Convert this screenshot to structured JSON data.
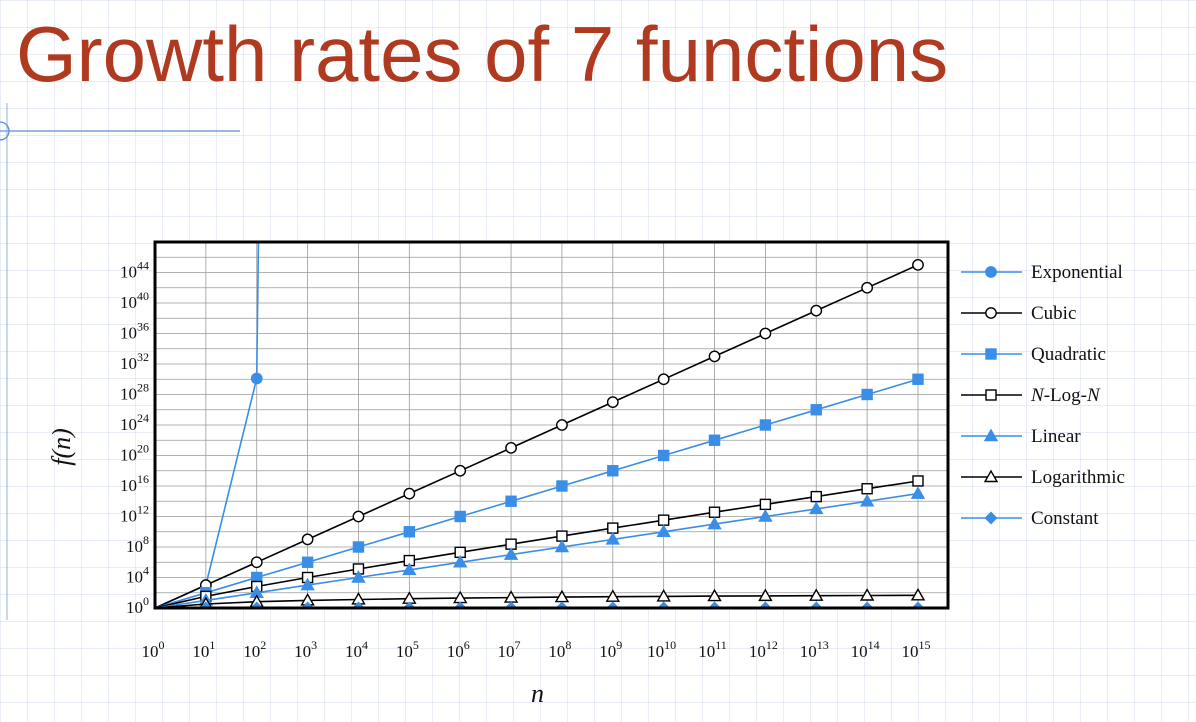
{
  "slide": {
    "title": "Growth rates of 7 functions"
  },
  "chart_data": {
    "type": "line",
    "xlabel": "n",
    "ylabel": "f(n)",
    "x_scale": "log10",
    "y_scale": "log10",
    "x_exponents": [
      0,
      1,
      2,
      3,
      4,
      5,
      6,
      7,
      8,
      9,
      10,
      11,
      12,
      13,
      14,
      15
    ],
    "y_tick_exponents": [
      0,
      4,
      8,
      12,
      16,
      20,
      24,
      28,
      32,
      36,
      40,
      44
    ],
    "xlim_exponent": [
      0,
      15
    ],
    "ylim_exponent": [
      0,
      48
    ],
    "grid": true,
    "legend_position": "right",
    "series": [
      {
        "name": "Exponential",
        "color": "#3a8ee6",
        "marker": "circle-filled",
        "y_exponents": [
          0,
          3.01,
          30.1
        ]
      },
      {
        "name": "Cubic",
        "color": "#000000",
        "marker": "circle-open",
        "y_exponents": [
          0,
          3,
          6,
          9,
          12,
          15,
          18,
          21,
          24,
          27,
          30,
          33,
          36,
          39,
          42,
          45
        ]
      },
      {
        "name": "Quadratic",
        "color": "#3a8ee6",
        "marker": "square-filled",
        "y_exponents": [
          0,
          2,
          4,
          6,
          8,
          10,
          12,
          14,
          16,
          18,
          20,
          22,
          24,
          26,
          28,
          30
        ]
      },
      {
        "name": "N-Log-N",
        "name_parts": [
          "N",
          "-Log-",
          "N"
        ],
        "color": "#000000",
        "marker": "square-open",
        "y_exponents": [
          0,
          1.52,
          2.82,
          4.0,
          5.12,
          6.22,
          7.3,
          8.37,
          9.43,
          10.48,
          11.52,
          12.56,
          13.59,
          14.61,
          15.64,
          16.66
        ]
      },
      {
        "name": "Linear",
        "color": "#3a8ee6",
        "marker": "triangle-filled",
        "y_exponents": [
          0,
          1,
          2,
          3,
          4,
          5,
          6,
          7,
          8,
          9,
          10,
          11,
          12,
          13,
          14,
          15
        ]
      },
      {
        "name": "Logarithmic",
        "color": "#000000",
        "marker": "triangle-open",
        "y_exponents": [
          0,
          0.52,
          0.82,
          1.0,
          1.12,
          1.22,
          1.3,
          1.37,
          1.43,
          1.48,
          1.52,
          1.56,
          1.59,
          1.61,
          1.64,
          1.66
        ]
      },
      {
        "name": "Constant",
        "color": "#3a8ee6",
        "marker": "diamond-filled",
        "y_exponents": [
          0,
          0,
          0,
          0,
          0,
          0,
          0,
          0,
          0,
          0,
          0,
          0,
          0,
          0,
          0,
          0
        ]
      }
    ]
  }
}
